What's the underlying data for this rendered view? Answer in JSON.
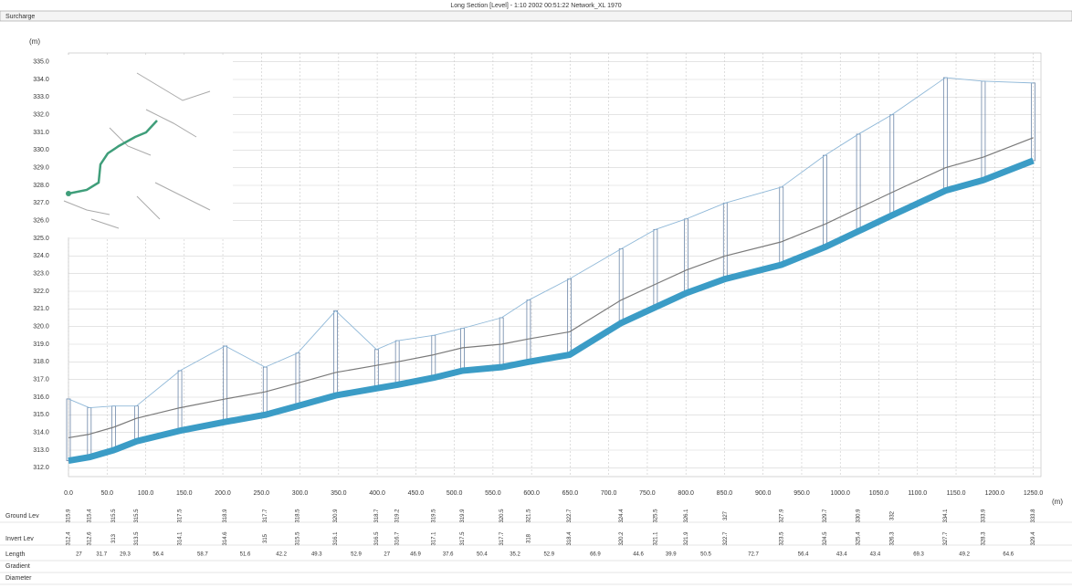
{
  "chart_data": {
    "type": "profile",
    "title": "Long Section [Level] - 1:10 2002 00:51:22 Network_XL 1970",
    "top_row_label": "Surcharge",
    "y_unit": "(m)",
    "x_unit": "(m)",
    "row_labels": [
      "Ground Lev",
      "Invert Lev",
      "Length",
      "Gradient",
      "Diameter"
    ],
    "x": [
      0,
      27.0,
      58.7,
      88.0,
      144.4,
      203.1,
      254.7,
      296.9,
      346.2,
      399.1,
      426.1,
      473.0,
      510.6,
      561.0,
      596.2,
      649.1,
      716.0,
      760.6,
      800.5,
      851.0,
      923.7,
      980.1,
      1023.5,
      1066.9,
      1136.2,
      1185.4,
      1250.0
    ],
    "series": [
      {
        "color": "#8fb8d8",
        "values": [
          315.9,
          315.4,
          315.5,
          315.5,
          317.5,
          318.9,
          317.7,
          318.5,
          320.9,
          318.7,
          319.2,
          319.5,
          319.9,
          320.5,
          321.5,
          322.7,
          324.4,
          325.5,
          326.1,
          327.0,
          327.9,
          329.7,
          330.9,
          332.0,
          334.1,
          333.9,
          333.8
        ]
      },
      {
        "color": "#7a7a7a",
        "values": [
          313.7,
          313.9,
          314.3,
          314.8,
          315.4,
          315.9,
          316.3,
          316.8,
          317.4,
          317.8,
          318.0,
          318.4,
          318.8,
          319.0,
          319.3,
          319.7,
          321.5,
          322.4,
          323.2,
          324.0,
          324.8,
          325.8,
          326.7,
          327.6,
          329.0,
          329.6,
          330.7
        ]
      },
      {
        "color": "#3b9cc6",
        "values": [
          312.4,
          312.6,
          313.0,
          313.5,
          314.1,
          314.6,
          315.0,
          315.5,
          316.1,
          316.5,
          316.7,
          317.1,
          317.5,
          317.7,
          318.0,
          318.4,
          320.2,
          321.1,
          321.9,
          322.7,
          323.5,
          324.5,
          325.4,
          326.3,
          327.7,
          328.3,
          329.4
        ]
      }
    ],
    "lengths": [
      27.0,
      31.7,
      29.3,
      56.4,
      58.7,
      51.6,
      42.2,
      49.3,
      52.9,
      27.0,
      46.9,
      37.6,
      50.4,
      35.2,
      52.9,
      66.9,
      44.6,
      39.9,
      50.5,
      72.7,
      56.4,
      43.4,
      43.4,
      69.3,
      49.2,
      64.6
    ],
    "xlim": [
      0,
      1260
    ],
    "ylim": [
      311.5,
      335.5
    ],
    "xticks": [
      {
        "value": 0,
        "label": "0.0"
      },
      {
        "value": 50,
        "label": "50.0"
      },
      {
        "value": 100,
        "label": "100.0"
      },
      {
        "value": 150,
        "label": "150.0"
      },
      {
        "value": 200,
        "label": "200.0"
      },
      {
        "value": 250,
        "label": "250.0"
      },
      {
        "value": 300,
        "label": "300.0"
      },
      {
        "value": 350,
        "label": "350.0"
      },
      {
        "value": 400,
        "label": "400.0"
      },
      {
        "value": 450,
        "label": "450.0"
      },
      {
        "value": 500,
        "label": "500.0"
      },
      {
        "value": 550,
        "label": "550.0"
      },
      {
        "value": 600,
        "label": "600.0"
      },
      {
        "value": 650,
        "label": "650.0"
      },
      {
        "value": 700,
        "label": "700.0"
      },
      {
        "value": 750,
        "label": "750.0"
      },
      {
        "value": 800,
        "label": "800.0"
      },
      {
        "value": 850,
        "label": "850.0"
      },
      {
        "value": 900,
        "label": "900.0"
      },
      {
        "value": 950,
        "label": "950.0"
      },
      {
        "value": 1000,
        "label": "1000.0"
      },
      {
        "value": 1050,
        "label": "1050.0"
      },
      {
        "value": 1100,
        "label": "1100.0"
      },
      {
        "value": 1150,
        "label": "1150.0"
      },
      {
        "value": 1200,
        "label": "1200.0"
      },
      {
        "value": 1250,
        "label": "1250.0"
      }
    ],
    "yticks": [
      {
        "value": 312,
        "label": "312.0"
      },
      {
        "value": 313,
        "label": "313.0"
      },
      {
        "value": 314,
        "label": "314.0"
      },
      {
        "value": 315,
        "label": "315.0"
      },
      {
        "value": 316,
        "label": "316.0"
      },
      {
        "value": 317,
        "label": "317.0"
      },
      {
        "value": 318,
        "label": "318.0"
      },
      {
        "value": 319,
        "label": "319.0"
      },
      {
        "value": 320,
        "label": "320.0"
      },
      {
        "value": 321,
        "label": "321.0"
      },
      {
        "value": 322,
        "label": "322.0"
      },
      {
        "value": 323,
        "label": "323.0"
      },
      {
        "value": 324,
        "label": "324.0"
      },
      {
        "value": 325,
        "label": "325.0"
      },
      {
        "value": 326,
        "label": "326.0"
      },
      {
        "value": 327,
        "label": "327.0"
      },
      {
        "value": 328,
        "label": "328.0"
      },
      {
        "value": 329,
        "label": "329.0"
      },
      {
        "value": 330,
        "label": "330.0"
      },
      {
        "value": 331,
        "label": "331.0"
      },
      {
        "value": 332,
        "label": "332.0"
      },
      {
        "value": 333,
        "label": "333.0"
      },
      {
        "value": 334,
        "label": "334.0"
      },
      {
        "value": 335,
        "label": "335.0"
      }
    ],
    "grid": true
  }
}
